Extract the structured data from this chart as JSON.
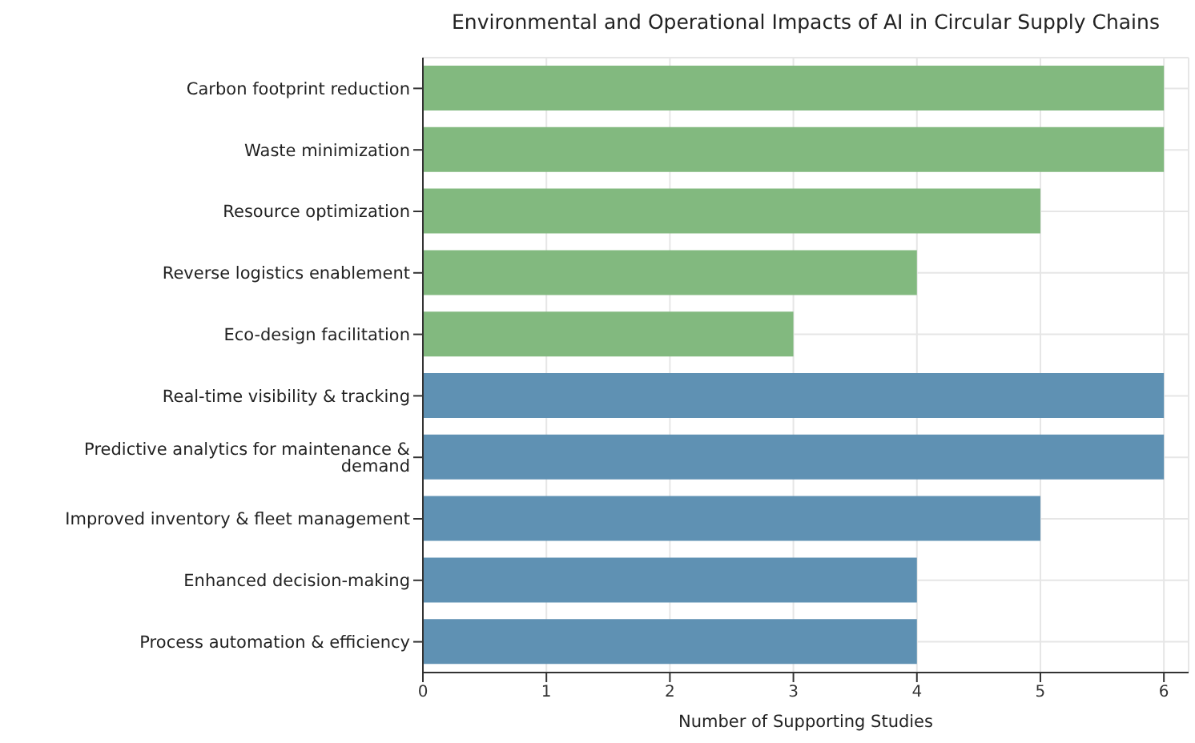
{
  "chart_data": {
    "type": "bar",
    "orientation": "horizontal",
    "title": "Environmental and Operational Impacts of AI in Circular Supply Chains",
    "xlabel": "Number of Supporting Studies",
    "categories": [
      "Carbon footprint reduction",
      "Waste minimization",
      "Resource optimization",
      "Reverse logistics enablement",
      "Eco-design facilitation",
      "Real-time visibility & tracking",
      "Predictive analytics for maintenance & demand",
      "Improved inventory & fleet management",
      "Enhanced decision-making",
      "Process automation & efficiency"
    ],
    "values": [
      6,
      6,
      5,
      4,
      3,
      6,
      6,
      5,
      4,
      4
    ],
    "colors": [
      "#82b97f",
      "#82b97f",
      "#82b97f",
      "#82b97f",
      "#82b97f",
      "#5f91b3",
      "#5f91b3",
      "#5f91b3",
      "#5f91b3",
      "#5f91b3"
    ],
    "xlim": [
      0,
      6.2
    ],
    "xticks": [
      0,
      1,
      2,
      3,
      4,
      5,
      6
    ],
    "grid": true
  }
}
